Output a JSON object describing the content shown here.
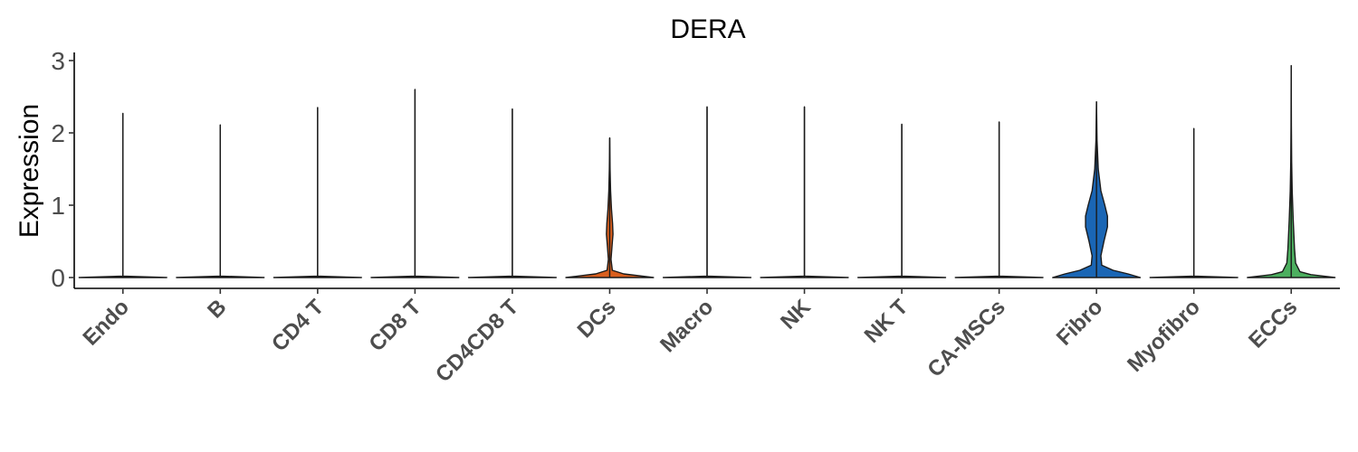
{
  "chart_data": {
    "type": "violin",
    "title": "DERA",
    "xlabel": "",
    "ylabel": "Expression",
    "ylim": [
      -0.15,
      3.1
    ],
    "yticks": [
      0,
      1,
      2,
      3
    ],
    "grid": false,
    "legend": "none",
    "categories": [
      "Endo",
      "B",
      "CD4 T",
      "CD8 T",
      "CD4CD8 T",
      "DCs",
      "Macro",
      "NK",
      "NK T",
      "CA-MSCs",
      "Fibro",
      "Myofibro",
      "ECCs"
    ],
    "series": [
      {
        "category": "Endo",
        "max": 2.27,
        "color": "#ffffff",
        "profile": [
          [
            0,
            1.0
          ],
          [
            0.02,
            0.0
          ]
        ]
      },
      {
        "category": "B",
        "max": 2.11,
        "color": "#ffffff",
        "profile": [
          [
            0,
            1.0
          ],
          [
            0.02,
            0.0
          ]
        ]
      },
      {
        "category": "CD4 T",
        "max": 2.35,
        "color": "#ffffff",
        "profile": [
          [
            0,
            1.0
          ],
          [
            0.02,
            0.0
          ]
        ]
      },
      {
        "category": "CD8 T",
        "max": 2.6,
        "color": "#ffffff",
        "profile": [
          [
            0,
            1.0
          ],
          [
            0.02,
            0.0
          ]
        ]
      },
      {
        "category": "CD4CD8 T",
        "max": 2.33,
        "color": "#ffffff",
        "profile": [
          [
            0,
            1.0
          ],
          [
            0.02,
            0.0
          ]
        ]
      },
      {
        "category": "DCs",
        "max": 1.93,
        "color": "#d95f1e",
        "profile": [
          [
            0,
            1.0
          ],
          [
            0.05,
            0.32
          ],
          [
            0.1,
            0.06
          ],
          [
            0.25,
            0.03
          ],
          [
            0.45,
            0.055
          ],
          [
            0.6,
            0.075
          ],
          [
            0.75,
            0.065
          ],
          [
            0.95,
            0.04
          ],
          [
            1.2,
            0.02
          ],
          [
            1.5,
            0.008
          ],
          [
            1.93,
            0.0
          ]
        ]
      },
      {
        "category": "Macro",
        "max": 2.36,
        "color": "#ffffff",
        "profile": [
          [
            0,
            1.0
          ],
          [
            0.02,
            0.0
          ]
        ]
      },
      {
        "category": "NK",
        "max": 2.36,
        "color": "#ffffff",
        "profile": [
          [
            0,
            1.0
          ],
          [
            0.02,
            0.0
          ]
        ]
      },
      {
        "category": "NK T",
        "max": 2.12,
        "color": "#ffffff",
        "profile": [
          [
            0,
            1.0
          ],
          [
            0.02,
            0.0
          ]
        ]
      },
      {
        "category": "CA-MSCs",
        "max": 2.15,
        "color": "#ffffff",
        "profile": [
          [
            0,
            1.0
          ],
          [
            0.02,
            0.0
          ]
        ]
      },
      {
        "category": "Fibro",
        "max": 2.43,
        "color": "#1a66b5",
        "profile": [
          [
            0,
            1.0
          ],
          [
            0.05,
            0.72
          ],
          [
            0.1,
            0.38
          ],
          [
            0.17,
            0.12
          ],
          [
            0.3,
            0.1
          ],
          [
            0.5,
            0.17
          ],
          [
            0.7,
            0.25
          ],
          [
            0.85,
            0.25
          ],
          [
            1.0,
            0.19
          ],
          [
            1.2,
            0.1
          ],
          [
            1.5,
            0.04
          ],
          [
            1.9,
            0.012
          ],
          [
            2.43,
            0.0
          ]
        ]
      },
      {
        "category": "Myofibro",
        "max": 2.06,
        "color": "#ffffff",
        "profile": [
          [
            0,
            1.0
          ],
          [
            0.02,
            0.0
          ]
        ]
      },
      {
        "category": "ECCs",
        "max": 2.93,
        "color": "#4caf5f",
        "profile": [
          [
            0,
            1.0
          ],
          [
            0.04,
            0.45
          ],
          [
            0.08,
            0.2
          ],
          [
            0.2,
            0.1
          ],
          [
            0.4,
            0.075
          ],
          [
            0.8,
            0.045
          ],
          [
            1.2,
            0.022
          ],
          [
            1.6,
            0.01
          ],
          [
            2.1,
            0.004
          ],
          [
            2.93,
            0.0
          ]
        ]
      }
    ]
  }
}
